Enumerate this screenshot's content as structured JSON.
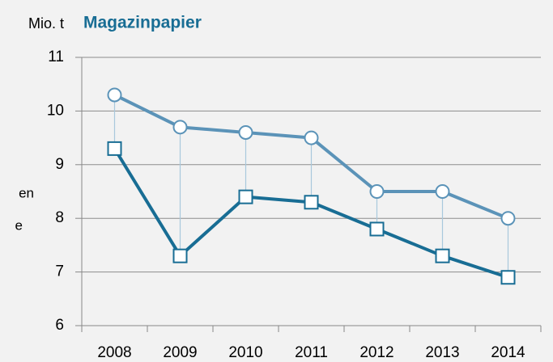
{
  "chart_data": {
    "type": "line",
    "title": "Magazinpapier",
    "unit_label": "Mio. t",
    "side_texts": [
      "en",
      "e"
    ],
    "categories": [
      "2008",
      "2009",
      "2010",
      "2011",
      "2012",
      "2013",
      "2014"
    ],
    "series": [
      {
        "color": "#5b93b8",
        "marker": "circle",
        "values": [
          10.3,
          9.7,
          9.6,
          9.5,
          8.5,
          8.5,
          8.0
        ]
      },
      {
        "color": "#186d94",
        "marker": "square",
        "values": [
          9.3,
          7.3,
          8.4,
          8.3,
          7.8,
          7.3,
          6.9
        ]
      }
    ],
    "connector_color": "#a9c8dc",
    "ylim": [
      6,
      11
    ],
    "yticks": [
      6,
      7,
      8,
      9,
      10,
      11
    ],
    "grid": true
  }
}
